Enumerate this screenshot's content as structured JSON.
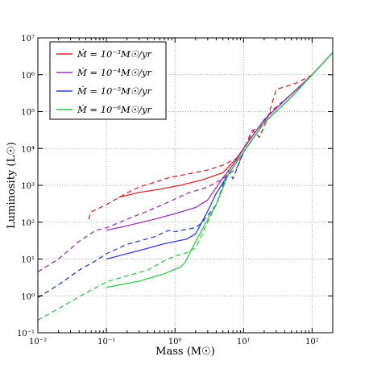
{
  "chart_data": {
    "type": "line",
    "xlabel": "Mass (M☉)",
    "ylabel": "Luminosity (L☉)",
    "xscale": "log",
    "yscale": "log",
    "xlim": [
      0.01,
      200
    ],
    "ylim": [
      0.1,
      10000000
    ],
    "grid": true,
    "legend_position": "top-left",
    "x_ticks": [
      {
        "value": 0.01,
        "label": "10⁻²"
      },
      {
        "value": 0.1,
        "label": "10⁻¹"
      },
      {
        "value": 1,
        "label": "10⁰"
      },
      {
        "value": 10,
        "label": "10¹"
      },
      {
        "value": 100,
        "label": "10²"
      }
    ],
    "y_ticks": [
      {
        "value": 0.1,
        "label": "10⁻¹"
      },
      {
        "value": 1,
        "label": "10⁰"
      },
      {
        "value": 10,
        "label": "10¹"
      },
      {
        "value": 100,
        "label": "10²"
      },
      {
        "value": 1000,
        "label": "10³"
      },
      {
        "value": 10000,
        "label": "10⁴"
      },
      {
        "value": 100000,
        "label": "10⁵"
      },
      {
        "value": 1000000,
        "label": "10⁶"
      },
      {
        "value": 10000000,
        "label": "10⁷"
      }
    ],
    "series": [
      {
        "name": "Ṁ = 10⁻³M☉/yr",
        "color": "#d62728",
        "solid": [
          [
            0.15,
            470
          ],
          [
            0.3,
            640
          ],
          [
            0.6,
            780
          ],
          [
            1.2,
            1000
          ],
          [
            2.5,
            1400
          ],
          [
            5,
            2200
          ],
          [
            8,
            5500
          ],
          [
            10,
            10000
          ],
          [
            20,
            60000
          ],
          [
            50,
            300000
          ],
          [
            100,
            1000000
          ],
          [
            200,
            4000000
          ]
        ],
        "dashed": [
          [
            0.055,
            120
          ],
          [
            0.06,
            190
          ],
          [
            0.1,
            300
          ],
          [
            0.2,
            620
          ],
          [
            0.3,
            900
          ],
          [
            0.5,
            1200
          ],
          [
            0.8,
            1600
          ],
          [
            1.5,
            2000
          ],
          [
            3,
            2600
          ],
          [
            5,
            3500
          ],
          [
            8,
            5500
          ],
          [
            10,
            10000
          ],
          [
            14,
            30000
          ],
          [
            17,
            20000
          ],
          [
            22,
            60000
          ],
          [
            30,
            400000
          ],
          [
            60,
            600000
          ],
          [
            100,
            1000000
          ]
        ]
      },
      {
        "name": "Ṁ = 10⁻⁴M☉/yr",
        "color": "#9b30b0",
        "solid": [
          [
            0.1,
            60
          ],
          [
            0.2,
            80
          ],
          [
            0.5,
            120
          ],
          [
            1,
            170
          ],
          [
            2,
            250
          ],
          [
            3,
            400
          ],
          [
            5,
            1600
          ],
          [
            8,
            5000
          ],
          [
            10,
            10000
          ],
          [
            20,
            60000
          ],
          [
            50,
            300000
          ],
          [
            100,
            1000000
          ],
          [
            200,
            4000000
          ]
        ],
        "dashed": [
          [
            0.01,
            4.5
          ],
          [
            0.02,
            10
          ],
          [
            0.04,
            30
          ],
          [
            0.07,
            60
          ],
          [
            0.1,
            70
          ],
          [
            0.2,
            120
          ],
          [
            0.4,
            200
          ],
          [
            0.8,
            350
          ],
          [
            1.5,
            600
          ],
          [
            3,
            900
          ],
          [
            5,
            1500
          ],
          [
            8,
            3000
          ],
          [
            10,
            8000
          ],
          [
            13,
            30000
          ],
          [
            18,
            40000
          ],
          [
            25,
            100000
          ],
          [
            50,
            300000
          ],
          [
            100,
            1000000
          ]
        ]
      },
      {
        "name": "Ṁ = 10⁻⁵M☉/yr",
        "color": "#2a3fd6",
        "solid": [
          [
            0.1,
            10
          ],
          [
            0.3,
            17
          ],
          [
            0.7,
            26
          ],
          [
            1.5,
            35
          ],
          [
            2,
            48
          ],
          [
            3,
            200
          ],
          [
            4,
            600
          ],
          [
            6,
            2000
          ],
          [
            10,
            8000
          ],
          [
            20,
            50000
          ],
          [
            50,
            250000
          ],
          [
            100,
            1000000
          ],
          [
            200,
            4000000
          ]
        ],
        "dashed": [
          [
            0.01,
            0.9
          ],
          [
            0.02,
            2
          ],
          [
            0.04,
            5
          ],
          [
            0.07,
            9
          ],
          [
            0.1,
            14
          ],
          [
            0.2,
            25
          ],
          [
            0.5,
            40
          ],
          [
            0.8,
            60
          ],
          [
            1,
            55
          ],
          [
            1.5,
            65
          ],
          [
            2,
            70
          ],
          [
            2.5,
            100
          ],
          [
            4,
            300
          ],
          [
            5,
            1000
          ],
          [
            6,
            2500
          ],
          [
            7,
            1500
          ],
          [
            10,
            8000
          ],
          [
            20,
            50000
          ],
          [
            50,
            250000
          ],
          [
            100,
            1000000
          ]
        ]
      },
      {
        "name": "Ṁ = 10⁻⁶M☉/yr",
        "color": "#2ecc40",
        "solid": [
          [
            0.1,
            1.7
          ],
          [
            0.3,
            2.5
          ],
          [
            0.7,
            4
          ],
          [
            1.2,
            6
          ],
          [
            1.4,
            8
          ],
          [
            2,
            30
          ],
          [
            3,
            120
          ],
          [
            4,
            300
          ],
          [
            6,
            2000
          ],
          [
            10,
            8000
          ],
          [
            20,
            50000
          ],
          [
            50,
            250000
          ],
          [
            100,
            1000000
          ],
          [
            200,
            4000000
          ]
        ],
        "dashed": [
          [
            0.01,
            0.22
          ],
          [
            0.02,
            0.45
          ],
          [
            0.05,
            1.2
          ],
          [
            0.1,
            2.4
          ],
          [
            0.2,
            3.5
          ],
          [
            0.4,
            5
          ],
          [
            0.7,
            9
          ],
          [
            1,
            12
          ],
          [
            1.5,
            15
          ],
          [
            2,
            20
          ],
          [
            3,
            100
          ],
          [
            4,
            300
          ],
          [
            6,
            2000
          ],
          [
            10,
            8000
          ],
          [
            20,
            50000
          ],
          [
            50,
            250000
          ],
          [
            100,
            1000000
          ]
        ]
      }
    ]
  }
}
